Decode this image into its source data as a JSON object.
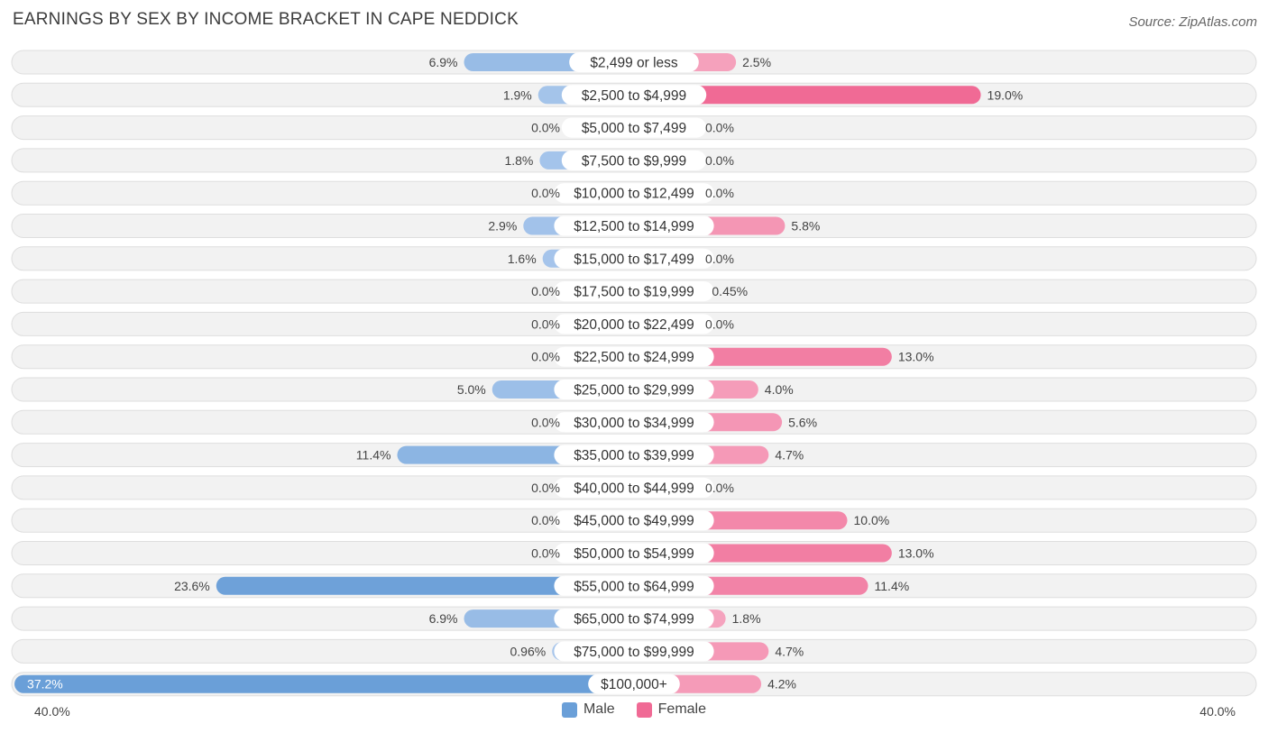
{
  "header": {
    "title": "EARNINGS BY SEX BY INCOME BRACKET IN CAPE NEDDICK",
    "source": "Source: ZipAtlas.com"
  },
  "axis": {
    "left_label": "40.0%",
    "right_label": "40.0%"
  },
  "legend": {
    "male_label": "Male",
    "female_label": "Female"
  },
  "colors": {
    "male_strong": "#6a9fd8",
    "male_light": "#a9c7ec",
    "female_strong": "#f06a95",
    "female_light": "#f6a9c2",
    "row_bg": "#f2f2f2",
    "row_border": "#dedede"
  },
  "chart_data": {
    "type": "bar",
    "orientation": "horizontal-diverging",
    "title": "EARNINGS BY SEX BY INCOME BRACKET IN CAPE NEDDICK",
    "xlim": [
      0,
      40
    ],
    "unit": "%",
    "categories": [
      "$2,499 or less",
      "$2,500 to $4,999",
      "$5,000 to $7,499",
      "$7,500 to $9,999",
      "$10,000 to $12,499",
      "$12,500 to $14,999",
      "$15,000 to $17,499",
      "$17,500 to $19,999",
      "$20,000 to $22,499",
      "$22,500 to $24,999",
      "$25,000 to $29,999",
      "$30,000 to $34,999",
      "$35,000 to $39,999",
      "$40,000 to $44,999",
      "$45,000 to $49,999",
      "$50,000 to $54,999",
      "$55,000 to $64,999",
      "$65,000 to $74,999",
      "$75,000 to $99,999",
      "$100,000+"
    ],
    "series": [
      {
        "name": "Male",
        "values": [
          6.9,
          1.9,
          0.0,
          1.8,
          0.0,
          2.9,
          1.6,
          0.0,
          0.0,
          0.0,
          5.0,
          0.0,
          11.4,
          0.0,
          0.0,
          0.0,
          23.6,
          6.9,
          0.96,
          37.2
        ],
        "labels": [
          "6.9%",
          "1.9%",
          "0.0%",
          "1.8%",
          "0.0%",
          "2.9%",
          "1.6%",
          "0.0%",
          "0.0%",
          "0.0%",
          "5.0%",
          "0.0%",
          "11.4%",
          "0.0%",
          "0.0%",
          "0.0%",
          "23.6%",
          "6.9%",
          "0.96%",
          "37.2%"
        ]
      },
      {
        "name": "Female",
        "values": [
          2.5,
          19.0,
          0.0,
          0.0,
          0.0,
          5.8,
          0.0,
          0.45,
          0.0,
          13.0,
          4.0,
          5.6,
          4.7,
          0.0,
          10.0,
          13.0,
          11.4,
          1.8,
          4.7,
          4.2
        ],
        "labels": [
          "2.5%",
          "19.0%",
          "0.0%",
          "0.0%",
          "0.0%",
          "5.8%",
          "0.0%",
          "0.45%",
          "0.0%",
          "13.0%",
          "4.0%",
          "5.6%",
          "4.7%",
          "0.0%",
          "10.0%",
          "13.0%",
          "11.4%",
          "1.8%",
          "4.7%",
          "4.2%"
        ]
      }
    ]
  }
}
